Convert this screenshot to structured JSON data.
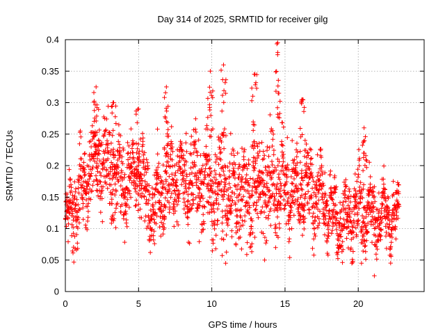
{
  "chart_data": {
    "type": "scatter",
    "title": "Day 314 of 2025, SRMTID for receiver gilg",
    "xlabel": "GPS time / hours",
    "ylabel": "SRMTID / TECUs",
    "xlim": [
      0,
      24.5
    ],
    "ylim": [
      0,
      0.4
    ],
    "xticks": [
      0,
      5,
      10,
      15,
      20
    ],
    "yticks": [
      0,
      0.05,
      0.1,
      0.15,
      0.2,
      0.25,
      0.3,
      0.35,
      0.4
    ],
    "xtick_labels": [
      "0",
      "5",
      "10",
      "15",
      "20"
    ],
    "ytick_labels": [
      "0",
      "0.05",
      "0.1",
      "0.15",
      "0.2",
      "0.25",
      "0.3",
      "0.35",
      "0.4"
    ],
    "grid": true,
    "marker": "+",
    "color": "#ff0000",
    "series": [
      {
        "name": "SRMTID",
        "x_range": [
          0,
          22.8
        ],
        "x_step": 0.01,
        "envelope_hours": [
          0,
          1,
          2,
          3,
          4,
          5,
          6,
          7,
          8,
          9,
          10,
          11,
          12,
          13,
          14,
          15,
          16,
          17,
          18,
          19,
          20,
          21,
          22,
          22.8
        ],
        "envelope_median": [
          0.11,
          0.15,
          0.22,
          0.19,
          0.16,
          0.2,
          0.13,
          0.18,
          0.17,
          0.18,
          0.16,
          0.16,
          0.15,
          0.16,
          0.18,
          0.17,
          0.15,
          0.16,
          0.13,
          0.11,
          0.13,
          0.12,
          0.12,
          0.12
        ],
        "envelope_spread": [
          0.04,
          0.05,
          0.06,
          0.06,
          0.05,
          0.05,
          0.05,
          0.06,
          0.05,
          0.06,
          0.06,
          0.07,
          0.06,
          0.07,
          0.07,
          0.06,
          0.05,
          0.05,
          0.04,
          0.04,
          0.05,
          0.04,
          0.04,
          0.04
        ],
        "peaks": [
          {
            "x": 2.1,
            "y": 0.325
          },
          {
            "x": 3.3,
            "y": 0.3
          },
          {
            "x": 5.0,
            "y": 0.29
          },
          {
            "x": 6.9,
            "y": 0.325
          },
          {
            "x": 9.9,
            "y": 0.35
          },
          {
            "x": 10.8,
            "y": 0.36
          },
          {
            "x": 12.9,
            "y": 0.345
          },
          {
            "x": 14.5,
            "y": 0.395
          },
          {
            "x": 16.2,
            "y": 0.305
          },
          {
            "x": 20.4,
            "y": 0.26
          }
        ],
        "minimum": {
          "x": 21.1,
          "y": 0.025
        }
      }
    ]
  }
}
